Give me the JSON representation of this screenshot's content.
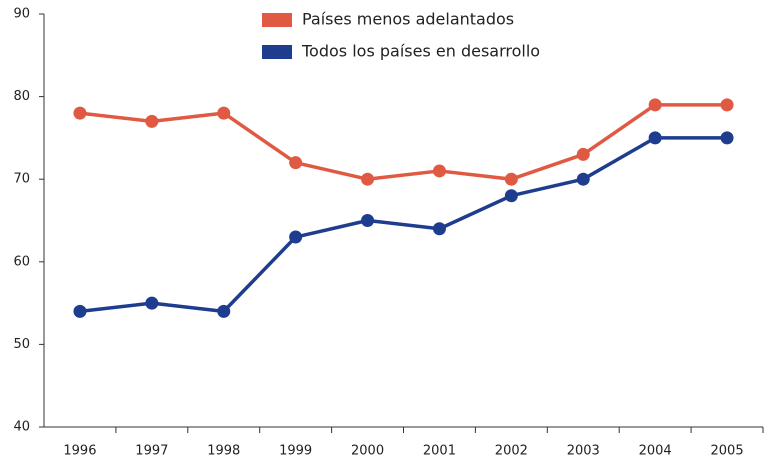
{
  "chart_data": {
    "type": "line",
    "categories": [
      "1996",
      "1997",
      "1998",
      "1999",
      "2000",
      "2001",
      "2002",
      "2003",
      "2004",
      "2005"
    ],
    "series": [
      {
        "name": "Países menos adelantados",
        "color": "#e05a43",
        "values": [
          78,
          77,
          78,
          72,
          70,
          71,
          70,
          73,
          79,
          79
        ]
      },
      {
        "name": "Todos los países en desarrollo",
        "color": "#1f3d8f",
        "values": [
          54,
          55,
          54,
          63,
          65,
          64,
          68,
          70,
          75,
          75
        ]
      }
    ],
    "ylim": [
      40,
      90
    ],
    "yticks": [
      40,
      50,
      60,
      70,
      80,
      90
    ],
    "grid": false
  }
}
